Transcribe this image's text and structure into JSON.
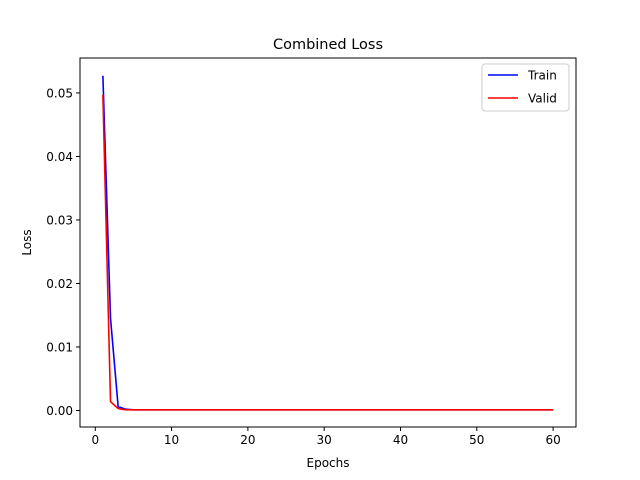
{
  "chart_data": {
    "type": "line",
    "title": "Combined Loss",
    "xlabel": "Epochs",
    "ylabel": "Loss",
    "xlim": [
      -2,
      63
    ],
    "ylim": [
      -0.0026,
      0.0555
    ],
    "xticks": [
      0,
      10,
      20,
      30,
      40,
      50,
      60
    ],
    "xtick_labels": [
      "0",
      "10",
      "20",
      "30",
      "40",
      "50",
      "60"
    ],
    "yticks": [
      0.0,
      0.01,
      0.02,
      0.03,
      0.04,
      0.05
    ],
    "ytick_labels": [
      "0.00",
      "0.01",
      "0.02",
      "0.03",
      "0.04",
      "0.05"
    ],
    "grid": false,
    "legend_position": "upper right",
    "series": [
      {
        "name": "Train",
        "color": "#0000ff",
        "x": [
          1,
          2,
          3,
          4,
          5,
          6,
          7,
          8,
          9,
          10,
          11,
          12,
          13,
          14,
          15,
          16,
          17,
          18,
          19,
          20,
          21,
          22,
          23,
          24,
          25,
          26,
          27,
          28,
          29,
          30,
          31,
          32,
          33,
          34,
          35,
          36,
          37,
          38,
          39,
          40,
          41,
          42,
          43,
          44,
          45,
          46,
          47,
          48,
          49,
          50,
          51,
          52,
          53,
          54,
          55,
          56,
          57,
          58,
          59,
          60
        ],
        "y": [
          0.0527,
          0.0145,
          0.0006,
          0.0002,
          0.0001,
          0.0001,
          0.0001,
          0.0001,
          0.0001,
          0.0001,
          0.0001,
          0.0001,
          0.0001,
          0.0001,
          0.0001,
          0.0001,
          0.0001,
          0.0001,
          0.0001,
          0.0001,
          0.0001,
          0.0001,
          0.0001,
          0.0001,
          0.0001,
          0.0001,
          0.0001,
          0.0001,
          0.0001,
          0.0001,
          0.0001,
          0.0001,
          0.0001,
          0.0001,
          0.0001,
          0.0001,
          0.0001,
          0.0001,
          0.0001,
          0.0001,
          0.0001,
          0.0001,
          0.0001,
          0.0001,
          0.0001,
          0.0001,
          0.0001,
          0.0001,
          0.0001,
          0.0001,
          0.0001,
          0.0001,
          0.0001,
          0.0001,
          0.0001,
          0.0001,
          0.0001,
          0.0001,
          0.0001,
          0.0001
        ]
      },
      {
        "name": "Valid",
        "color": "#ff0000",
        "x": [
          1,
          2,
          3,
          4,
          5,
          6,
          7,
          8,
          9,
          10,
          11,
          12,
          13,
          14,
          15,
          16,
          17,
          18,
          19,
          20,
          21,
          22,
          23,
          24,
          25,
          26,
          27,
          28,
          29,
          30,
          31,
          32,
          33,
          34,
          35,
          36,
          37,
          38,
          39,
          40,
          41,
          42,
          43,
          44,
          45,
          46,
          47,
          48,
          49,
          50,
          51,
          52,
          53,
          54,
          55,
          56,
          57,
          58,
          59,
          60
        ],
        "y": [
          0.0497,
          0.0014,
          0.0003,
          0.0001,
          0.0001,
          0.0001,
          0.0001,
          0.0001,
          0.0001,
          0.0001,
          0.0001,
          0.0001,
          0.0001,
          0.0001,
          0.0001,
          0.0001,
          0.0001,
          0.0001,
          0.0001,
          0.0001,
          0.0001,
          0.0001,
          0.0001,
          0.0001,
          0.0001,
          0.0001,
          0.0001,
          0.0001,
          0.0001,
          0.0001,
          0.0001,
          0.0001,
          0.0001,
          0.0001,
          0.0001,
          0.0001,
          0.0001,
          0.0001,
          0.0001,
          0.0001,
          0.0001,
          0.0001,
          0.0001,
          0.0001,
          0.0001,
          0.0001,
          0.0001,
          0.0001,
          0.0001,
          0.0001,
          0.0001,
          0.0001,
          0.0001,
          0.0001,
          0.0001,
          0.0001,
          0.0001,
          0.0001,
          0.0001,
          0.0001
        ]
      }
    ]
  }
}
